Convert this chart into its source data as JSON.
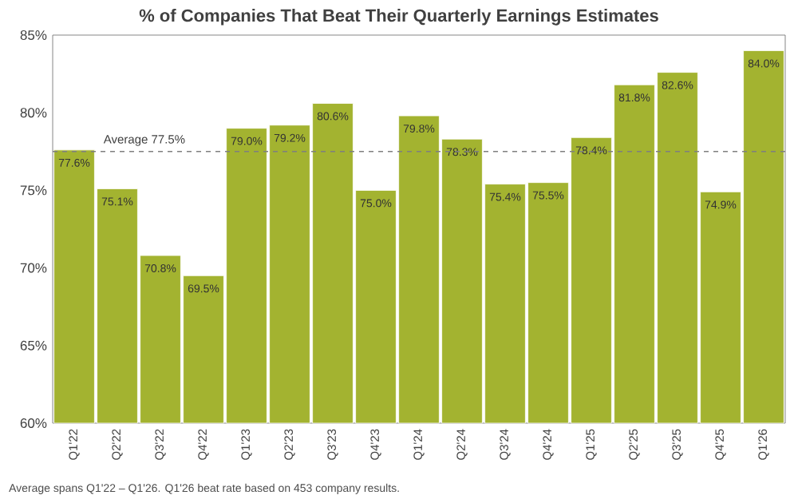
{
  "chart_data": {
    "type": "bar",
    "title": "% of Companies That Beat Their Quarterly Earnings Estimates",
    "categories": [
      "Q1'22",
      "Q2'22",
      "Q3'22",
      "Q4'22",
      "Q1'23",
      "Q2'23",
      "Q3'23",
      "Q4'23",
      "Q1'24",
      "Q2'24",
      "Q3'24",
      "Q4'24",
      "Q1'25",
      "Q2'25",
      "Q3'25",
      "Q4'25",
      "Q1'26"
    ],
    "values": [
      77.6,
      75.1,
      70.8,
      69.5,
      79.0,
      79.2,
      80.6,
      75.0,
      79.8,
      78.3,
      75.4,
      75.5,
      78.4,
      81.8,
      82.6,
      74.9,
      84.0
    ],
    "value_labels": [
      "77.6%",
      "75.1%",
      "70.8%",
      "69.5%",
      "79.0%",
      "79.2%",
      "80.6%",
      "75.0%",
      "79.8%",
      "78.3%",
      "75.4%",
      "75.5%",
      "78.4%",
      "81.8%",
      "82.6%",
      "74.9%",
      "84.0%"
    ],
    "color": "#a3b330",
    "ylim": [
      60,
      85
    ],
    "yticks": [
      {
        "value": 60,
        "label": "60%"
      },
      {
        "value": 65,
        "label": "65%"
      },
      {
        "value": 70,
        "label": "70%"
      },
      {
        "value": 75,
        "label": "75%"
      },
      {
        "value": 80,
        "label": "80%"
      },
      {
        "value": 85,
        "label": "85%"
      }
    ],
    "ref_lines": [
      {
        "axis": "y",
        "value": 77.5,
        "label": "Average 77.5%",
        "color": "#7f7f7f",
        "line_style": "dashed"
      }
    ],
    "annotations": [
      "Average spans Q1'22 – Q1'26. Q1'26 beat rate based on 453 company results."
    ]
  }
}
